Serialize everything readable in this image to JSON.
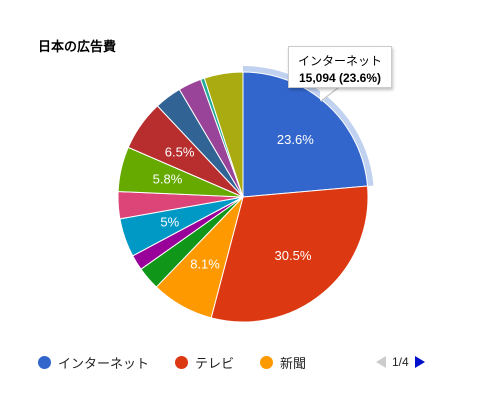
{
  "chart_data": {
    "type": "pie",
    "title": "日本の広告費",
    "slices": [
      {
        "name": "インターネット",
        "value": 23.6,
        "color": "#3366cc",
        "label": "23.6%"
      },
      {
        "name": "テレビ",
        "value": 30.5,
        "color": "#dc3912",
        "label": "30.5%"
      },
      {
        "name": "新聞",
        "value": 8.1,
        "color": "#ff9900",
        "label": "8.1%"
      },
      {
        "name": "",
        "value": 3.0,
        "color": "#109618",
        "label": ""
      },
      {
        "name": "",
        "value": 2.0,
        "color": "#990099",
        "label": ""
      },
      {
        "name": "",
        "value": 5.0,
        "color": "#0099c6",
        "label": "5%"
      },
      {
        "name": "",
        "value": 3.5,
        "color": "#dd4477",
        "label": ""
      },
      {
        "name": "",
        "value": 5.8,
        "color": "#66aa00",
        "label": "5.8%"
      },
      {
        "name": "",
        "value": 6.5,
        "color": "#b82e2e",
        "label": "6.5%"
      },
      {
        "name": "",
        "value": 3.5,
        "color": "#316395",
        "label": ""
      },
      {
        "name": "",
        "value": 3.0,
        "color": "#994499",
        "label": ""
      },
      {
        "name": "",
        "value": 0.5,
        "color": "#22aa99",
        "label": ""
      },
      {
        "name": "",
        "value": 5.0,
        "color": "#aaaa11",
        "label": ""
      }
    ],
    "highlighted_slice": 0,
    "legend_position": "bottom"
  },
  "tooltip": {
    "name": "インターネット",
    "value": "15,094 (23.6%)"
  },
  "legend": {
    "items": [
      {
        "label": "インターネット",
        "color": "#3366cc"
      },
      {
        "label": "テレビ",
        "color": "#dc3912"
      },
      {
        "label": "新聞",
        "color": "#ff9900"
      }
    ],
    "page": "1/4"
  }
}
